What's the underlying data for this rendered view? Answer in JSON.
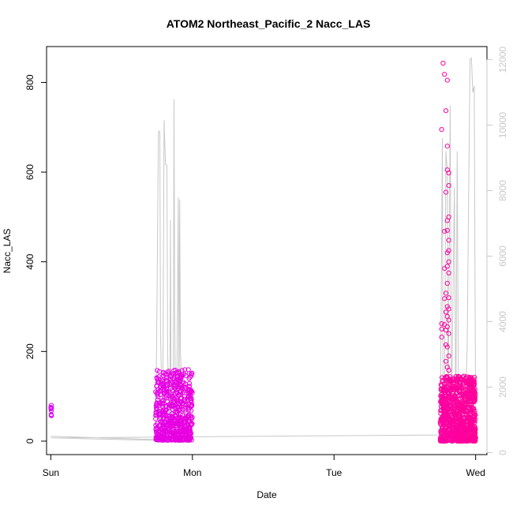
{
  "chart_data": {
    "type": "scatter",
    "title": "ATOM2 Northeast_Pacific_2 Nacc_LAS",
    "xlabel": "Date",
    "ylabel": "Nacc_LAS",
    "x_ticks": [
      "Sun",
      "Mon",
      "Tue",
      "Wed"
    ],
    "xlim_days": [
      -0.03,
      3.08
    ],
    "ylim": [
      -30,
      880
    ],
    "y_ticks": [
      0,
      200,
      400,
      600,
      800
    ],
    "y2lim": [
      -60,
      12400
    ],
    "y2_ticks": [
      0,
      2000,
      4000,
      6000,
      8000,
      10000,
      12000
    ],
    "grid": false,
    "legend": "none",
    "colors": {
      "points_start": "#dd00ff",
      "points_end": "#ff0099",
      "line": "#c8c8c8",
      "right_axis": "#c8c8c8",
      "frame": "#000000"
    },
    "series": [
      {
        "clusters": [
          {
            "x_start": 0.0,
            "x_end": 0.005,
            "y_min": 55,
            "y_max": 80,
            "n": 10,
            "spikes": []
          },
          {
            "x_start": 0.74,
            "x_end": 1.0,
            "y_min": 2,
            "y_max": 160,
            "n": 600,
            "spikes": [
              {
                "x": 0.74,
                "y": 110
              },
              {
                "x": 0.86,
                "y": 150
              },
              {
                "x": 0.88,
                "y": 158
              },
              {
                "x": 0.91,
                "y": 140
              },
              {
                "x": 0.99,
                "y": 112
              }
            ]
          },
          {
            "x_start": 2.75,
            "x_end": 3.0,
            "y_min": 0,
            "y_max": 145,
            "n": 900,
            "spikes": [
              {
                "x": 2.77,
                "y": 843
              },
              {
                "x": 2.78,
                "y": 818
              },
              {
                "x": 2.8,
                "y": 805
              },
              {
                "x": 2.79,
                "y": 737
              },
              {
                "x": 2.76,
                "y": 695
              },
              {
                "x": 2.8,
                "y": 658
              },
              {
                "x": 2.8,
                "y": 605
              },
              {
                "x": 2.81,
                "y": 598
              },
              {
                "x": 2.81,
                "y": 570
              },
              {
                "x": 2.79,
                "y": 555
              },
              {
                "x": 2.81,
                "y": 500
              },
              {
                "x": 2.8,
                "y": 492
              },
              {
                "x": 2.8,
                "y": 470
              },
              {
                "x": 2.78,
                "y": 468
              },
              {
                "x": 2.81,
                "y": 448
              },
              {
                "x": 2.81,
                "y": 425
              },
              {
                "x": 2.8,
                "y": 420
              },
              {
                "x": 2.81,
                "y": 400
              },
              {
                "x": 2.8,
                "y": 390
              },
              {
                "x": 2.78,
                "y": 385
              },
              {
                "x": 2.81,
                "y": 375
              },
              {
                "x": 2.8,
                "y": 352
              },
              {
                "x": 2.79,
                "y": 330
              },
              {
                "x": 2.81,
                "y": 320
              },
              {
                "x": 2.78,
                "y": 318
              },
              {
                "x": 2.8,
                "y": 300
              },
              {
                "x": 2.81,
                "y": 295
              },
              {
                "x": 2.79,
                "y": 288
              },
              {
                "x": 2.8,
                "y": 278
              },
              {
                "x": 2.81,
                "y": 270
              },
              {
                "x": 2.78,
                "y": 260
              },
              {
                "x": 2.8,
                "y": 255
              },
              {
                "x": 2.79,
                "y": 248
              },
              {
                "x": 2.81,
                "y": 240
              },
              {
                "x": 2.76,
                "y": 262
              },
              {
                "x": 2.76,
                "y": 250
              },
              {
                "x": 2.76,
                "y": 232
              },
              {
                "x": 2.79,
                "y": 215
              },
              {
                "x": 2.8,
                "y": 210
              },
              {
                "x": 2.81,
                "y": 190
              },
              {
                "x": 2.79,
                "y": 178
              },
              {
                "x": 2.8,
                "y": 165
              },
              {
                "x": 2.81,
                "y": 158
              },
              {
                "x": 2.84,
                "y": 140
              },
              {
                "x": 2.97,
                "y": 142
              }
            ]
          }
        ]
      },
      {
        "axis": "right",
        "points": [
          [
            0.0,
            500
          ],
          [
            0.74,
            400
          ],
          [
            0.75,
            4500
          ],
          [
            0.76,
            9800
          ],
          [
            0.77,
            9820
          ],
          [
            0.775,
            3600
          ],
          [
            0.79,
            600
          ],
          [
            0.8,
            10150
          ],
          [
            0.81,
            8800
          ],
          [
            0.82,
            8780
          ],
          [
            0.825,
            3000
          ],
          [
            0.84,
            600
          ],
          [
            0.845,
            7100
          ],
          [
            0.85,
            600
          ],
          [
            0.865,
            2200
          ],
          [
            0.87,
            10800
          ],
          [
            0.875,
            4000
          ],
          [
            0.88,
            1800
          ],
          [
            0.89,
            2000
          ],
          [
            0.9,
            7800
          ],
          [
            0.905,
            1000
          ],
          [
            0.91,
            7720
          ],
          [
            0.915,
            3100
          ],
          [
            0.93,
            1200
          ],
          [
            0.955,
            500
          ],
          [
            0.96,
            2000
          ],
          [
            0.97,
            350
          ],
          [
            0.0,
            450
          ],
          [
            2.74,
            540
          ],
          [
            2.75,
            600
          ],
          [
            2.76,
            6600
          ],
          [
            2.765,
            9600
          ],
          [
            2.77,
            800
          ],
          [
            2.78,
            1800
          ],
          [
            2.79,
            9200
          ],
          [
            2.8,
            8600
          ],
          [
            2.805,
            600
          ],
          [
            2.82,
            10600
          ],
          [
            2.83,
            1200
          ],
          [
            2.85,
            8100
          ],
          [
            2.86,
            900
          ],
          [
            2.87,
            9200
          ],
          [
            2.88,
            700
          ],
          [
            2.9,
            1600
          ],
          [
            2.92,
            600
          ],
          [
            2.94,
            3200
          ],
          [
            2.96,
            12000
          ],
          [
            2.97,
            12050
          ],
          [
            2.98,
            11000
          ],
          [
            2.99,
            11200
          ],
          [
            3.0,
            900
          ]
        ]
      }
    ]
  }
}
